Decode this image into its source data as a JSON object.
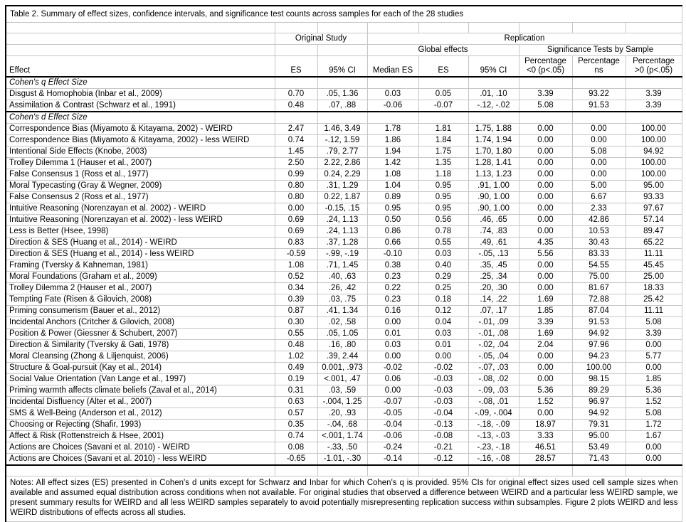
{
  "title": "Table 2. Summary of effect sizes, confidence intervals, and significance test counts across samples for each of the 28 studies",
  "colors": {
    "background": "#ffffff",
    "text": "#000000",
    "gridline": "#c6c6c6",
    "rule": "#000000"
  },
  "table": {
    "group_headers": {
      "original_study": "Original Study",
      "replication": "Replication",
      "global_effects": "Global effects",
      "significance_tests": "Significance Tests by Sample"
    },
    "col_headers": {
      "effect": "Effect",
      "orig_es": "ES",
      "orig_ci": "95% CI",
      "median_es": "Median ES",
      "rep_es": "ES",
      "rep_ci": "95% CI",
      "pct_neg_l1": "Percentage",
      "pct_neg_l2": "<0 (p<.05)",
      "pct_ns_l1": "Percentage",
      "pct_ns_l2": "ns",
      "pct_pos_l1": "Percentage",
      "pct_pos_l2": ">0 (p<.05)"
    },
    "sections": [
      {
        "label": "Cohen's q Effect Size",
        "rows": [
          {
            "effect": "Disgust & Homophobia (Inbar et al., 2009)",
            "cells": [
              "0.70",
              ".05, 1.36",
              "0.03",
              "0.05",
              ".01, .10",
              "3.39",
              "93.22",
              "3.39"
            ]
          },
          {
            "effect": "Assimilation & Contrast (Schwarz et al., 1991)",
            "cells": [
              "0.48",
              ".07, .88",
              "-0.06",
              "-0.07",
              "-.12, -.02",
              "5.08",
              "91.53",
              "3.39"
            ]
          }
        ]
      },
      {
        "label": "Cohen's d Effect Size",
        "rows": [
          {
            "effect": "Correspondence Bias (Miyamoto & Kitayama, 2002) - WEIRD",
            "cells": [
              "2.47",
              "1.46, 3.49",
              "1.78",
              "1.81",
              "1.75, 1.88",
              "0.00",
              "0.00",
              "100.00"
            ]
          },
          {
            "effect": "Correspondence Bias (Miyamoto & Kitayama, 2002) - less WEIRD",
            "cells": [
              "0.74",
              "-.12, 1.59",
              "1.86",
              "1.84",
              "1.74, 1.94",
              "0.00",
              "0.00",
              "100.00"
            ]
          },
          {
            "effect": "Intentional Side Effects (Knobe, 2003)",
            "cells": [
              "1.45",
              ".79, 2.77",
              "1.94",
              "1.75",
              "1.70, 1.80",
              "0.00",
              "5.08",
              "94.92"
            ]
          },
          {
            "effect": "Trolley Dilemma 1 (Hauser et al., 2007)",
            "cells": [
              "2.50",
              "2.22, 2.86",
              "1.42",
              "1.35",
              "1.28, 1.41",
              "0.00",
              "0.00",
              "100.00"
            ]
          },
          {
            "effect": "False Consensus 1 (Ross et al., 1977)",
            "cells": [
              "0.99",
              "0.24, 2.29",
              "1.08",
              "1.18",
              "1.13, 1.23",
              "0.00",
              "0.00",
              "100.00"
            ]
          },
          {
            "effect": "Moral Typecasting (Gray & Wegner, 2009)",
            "cells": [
              "0.80",
              ".31, 1.29",
              "1.04",
              "0.95",
              ".91, 1.00",
              "0.00",
              "5.00",
              "95.00"
            ]
          },
          {
            "effect": "False Consensus 2 (Ross et al., 1977)",
            "cells": [
              "0.80",
              "0.22, 1.87",
              "0.89",
              "0.95",
              ".90, 1.00",
              "0.00",
              "6.67",
              "93.33"
            ]
          },
          {
            "effect": "Intuitive Reasoning (Norenzayan et al. 2002) - WEIRD",
            "cells": [
              "0.00",
              "-0.15, .15",
              "0.95",
              "0.95",
              ".90, 1.00",
              "0.00",
              "2.33",
              "97.67"
            ]
          },
          {
            "effect": "Intuitive Reasoning (Norenzayan et al. 2002) - less WEIRD",
            "cells": [
              "0.69",
              ".24, 1.13",
              "0.50",
              "0.56",
              ".46, .65",
              "0.00",
              "42.86",
              "57.14"
            ]
          },
          {
            "effect": "Less is Better (Hsee, 1998)",
            "cells": [
              "0.69",
              ".24, 1.13",
              "0.86",
              "0.78",
              ".74, .83",
              "0.00",
              "10.53",
              "89.47"
            ]
          },
          {
            "effect": "Direction & SES (Huang et al., 2014) - WEIRD",
            "cells": [
              "0.83",
              ".37, 1.28",
              "0.66",
              "0.55",
              ".49, .61",
              "4.35",
              "30.43",
              "65.22"
            ]
          },
          {
            "effect": "Direction & SES (Huang et al., 2014) - less WEIRD",
            "cells": [
              "-0.59",
              "-.99, -.19",
              "-0.10",
              "0.03",
              "-.05, .13",
              "5.56",
              "83.33",
              "11.11"
            ]
          },
          {
            "effect": "Framing (Tversky & Kahneman, 1981)",
            "cells": [
              "1.08",
              ".71, 1.45",
              "0.38",
              "0.40",
              ".35, .45",
              "0.00",
              "54.55",
              "45.45"
            ]
          },
          {
            "effect": "Moral Foundations (Graham et al., 2009)",
            "cells": [
              "0.52",
              ".40, .63",
              "0.23",
              "0.29",
              ".25, .34",
              "0.00",
              "75.00",
              "25.00"
            ]
          },
          {
            "effect": "Trolley Dilemma 2 (Hauser et al., 2007)",
            "cells": [
              "0.34",
              ".26, .42",
              "0.22",
              "0.25",
              ".20, .30",
              "0.00",
              "81.67",
              "18.33"
            ]
          },
          {
            "effect": "Tempting Fate (Risen & Gilovich, 2008)",
            "cells": [
              "0.39",
              ".03, .75",
              "0.23",
              "0.18",
              ".14, .22",
              "1.69",
              "72.88",
              "25.42"
            ]
          },
          {
            "effect": "Priming consumerism (Bauer et al., 2012)",
            "cells": [
              "0.87",
              ".41, 1.34",
              "0.16",
              "0.12",
              ".07, .17",
              "1.85",
              "87.04",
              "11.11"
            ]
          },
          {
            "effect": "Incidental Anchors (Critcher & Gilovich, 2008)",
            "cells": [
              "0.30",
              ".02, .58",
              "0.00",
              "0.04",
              "-.01, .09",
              "3.39",
              "91.53",
              "5.08"
            ]
          },
          {
            "effect": "Position & Power (Giessner & Schubert, 2007)",
            "cells": [
              "0.55",
              ".05, 1.05",
              "0.01",
              "0.03",
              "-.01, .08",
              "1.69",
              "94.92",
              "3.39"
            ]
          },
          {
            "effect": "Direction & Similarity (Tversky & Gati, 1978)",
            "cells": [
              "0.48",
              ".16, .80",
              "0.03",
              "0.01",
              "-.02, .04",
              "2.04",
              "97.96",
              "0.00"
            ]
          },
          {
            "effect": "Moral Cleansing (Zhong & Liljenquist, 2006)",
            "cells": [
              "1.02",
              ".39, 2.44",
              "0.00",
              "0.00",
              "-.05, .04",
              "0.00",
              "94.23",
              "5.77"
            ]
          },
          {
            "effect": "Structure & Goal-pursuit (Kay et al., 2014)",
            "cells": [
              "0.49",
              "0.001, .973",
              "-0.02",
              "-0.02",
              "-.07, .03",
              "0.00",
              "100.00",
              "0.00"
            ]
          },
          {
            "effect": "Social Value Orientation (Van Lange et al., 1997)",
            "cells": [
              "0.19",
              "<.001, .47",
              "0.06",
              "-0.03",
              "-.08, .02",
              "0.00",
              "98.15",
              "1.85"
            ]
          },
          {
            "effect": "Priming warmth affects climate beliefs (Zaval et al., 2014)",
            "cells": [
              "0.31",
              ".03, .59",
              "0.00",
              "-0.03",
              "-.09, .03",
              "5.36",
              "89.29",
              "5.36"
            ]
          },
          {
            "effect": "Incidental Disfluency (Alter et al., 2007)",
            "cells": [
              "0.63",
              "-.004, 1.25",
              "-0.07",
              "-0.03",
              "-.08, .01",
              "1.52",
              "96.97",
              "1.52"
            ]
          },
          {
            "effect": "SMS & Well-Being (Anderson et al., 2012)",
            "cells": [
              "0.57",
              ".20, .93",
              "-0.05",
              "-0.04",
              "-.09, -.004",
              "0.00",
              "94.92",
              "5.08"
            ]
          },
          {
            "effect": "Choosing or Rejecting (Shafir, 1993)",
            "cells": [
              "0.35",
              "-.04, .68",
              "-0.04",
              "-0.13",
              "-.18, -.09",
              "18.97",
              "79.31",
              "1.72"
            ]
          },
          {
            "effect": "Affect & Risk (Rottenstreich & Hsee, 2001)",
            "cells": [
              "0.74",
              "<.001, 1.74",
              "-0.06",
              "-0.08",
              "-.13, -.03",
              "3.33",
              "95.00",
              "1.67"
            ]
          },
          {
            "effect": "Actions are Choices (Savani et al. 2010) - WEIRD",
            "cells": [
              "0.08",
              "-.33, .50",
              "-0.24",
              "-0.21",
              "-.23, -.18",
              "46.51",
              "53.49",
              "0.00"
            ]
          },
          {
            "effect": "Actions are Choices (Savani et al. 2010) - less WEIRD",
            "cells": [
              "-0.65",
              "-1.01, -.30",
              "-0.14",
              "-0.12",
              "-.16, -.08",
              "28.57",
              "71.43",
              "0.00"
            ]
          }
        ]
      }
    ]
  },
  "notes": "Notes: All effect sizes (ES) presented in Cohen's d units except for Schwarz and Inbar for which Cohen's q is provided. 95% CIs for original effect sizes used cell sample sizes when available and assumed equal distribution across conditions when not available. For original studies that observed a difference between WEIRD and a particular less WEIRD sample, we present summary results for WEIRD and all less WEIRD samples separately to avoid potentially misrepresenting replication success within subsamples. Figure 2 plots WEIRD and less WEIRD distributions of effects across all studies."
}
